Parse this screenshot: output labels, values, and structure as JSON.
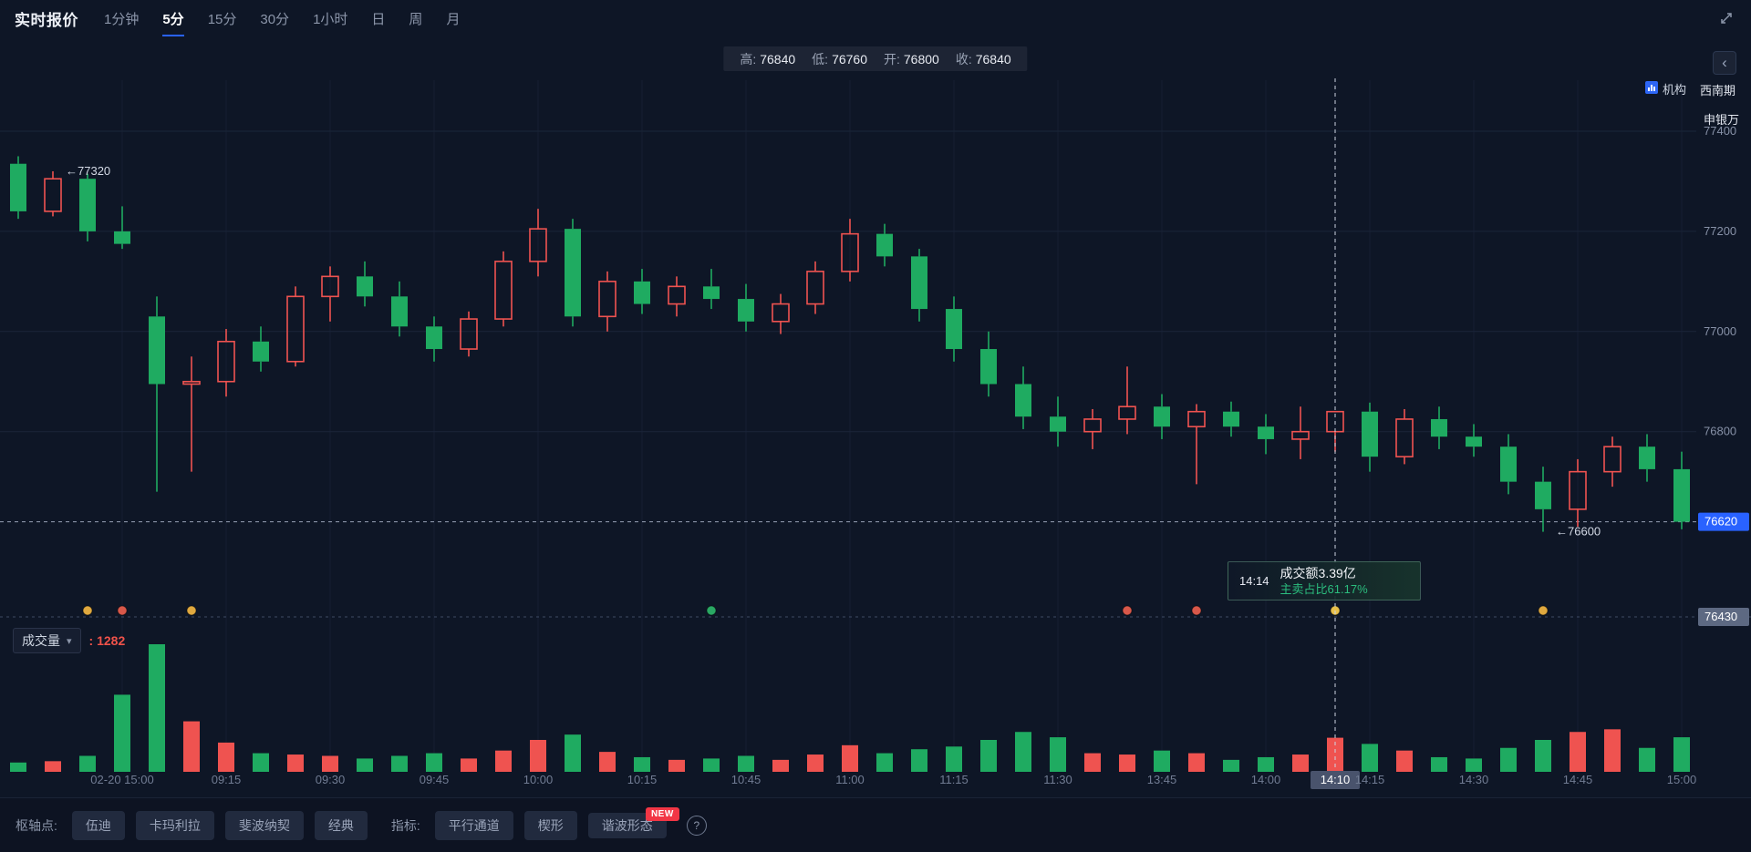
{
  "header": {
    "title": "实时报价",
    "tabs": [
      "1分钟",
      "5分",
      "15分",
      "30分",
      "1小时",
      "日",
      "周",
      "月"
    ],
    "active_tab": "5分"
  },
  "ohlc_bar": {
    "h_label": "高:",
    "h": "76840",
    "l_label": "低:",
    "l": "76760",
    "o_label": "开:",
    "o": "76800",
    "c_label": "收:",
    "c": "76840"
  },
  "right_panel": {
    "institution": "机构",
    "broker1": "西南期",
    "broker2": "申银万"
  },
  "volume_pane": {
    "label": "成交量",
    "value": ": 1282"
  },
  "toolbar": {
    "pivot_label": "枢轴点:",
    "pivot_buttons": [
      "伍迪",
      "卡玛利拉",
      "斐波纳契",
      "经典"
    ],
    "indicator_label": "指标:",
    "indicator_buttons": [
      "平行通道",
      "楔形",
      "谐波形态"
    ],
    "new_badge": "NEW"
  },
  "icons": {
    "chevron_down": "▾",
    "collapse": "‹",
    "help": "?"
  },
  "chart_data": {
    "type": "candlestick+volume",
    "timeframe": "5分",
    "price_axis": {
      "top": 77400,
      "floor": 76430,
      "ticks": [
        77400,
        77200,
        77000,
        76800
      ]
    },
    "current_price": 76620,
    "high_annotation": {
      "i": 1,
      "price": 77320,
      "label": "77320"
    },
    "low_annotation": {
      "i": 44,
      "price": 76600,
      "label": "76600"
    },
    "crosshair": {
      "i": 38,
      "time": "14:14",
      "axis_label": "14:10"
    },
    "tooltip": {
      "turnover": "成交额3.39亿",
      "sell_ratio": "主卖占比61.17%"
    },
    "x_ticks": [
      {
        "i": 3,
        "label": "02-20 15:00"
      },
      {
        "i": 6,
        "label": "09:15"
      },
      {
        "i": 9,
        "label": "09:30"
      },
      {
        "i": 12,
        "label": "09:45"
      },
      {
        "i": 15,
        "label": "10:00"
      },
      {
        "i": 18,
        "label": "10:15"
      },
      {
        "i": 21,
        "label": "10:45"
      },
      {
        "i": 24,
        "label": "11:00"
      },
      {
        "i": 27,
        "label": "11:15"
      },
      {
        "i": 30,
        "label": "11:30"
      },
      {
        "i": 33,
        "label": "13:45"
      },
      {
        "i": 36,
        "label": "14:00"
      },
      {
        "i": 38,
        "label": "14:10",
        "hl": true
      },
      {
        "i": 39,
        "label": "14:15"
      },
      {
        "i": 42,
        "label": "14:30"
      },
      {
        "i": 45,
        "label": "14:45"
      },
      {
        "i": 48,
        "label": "15:00"
      }
    ],
    "markers": [
      {
        "i": 2,
        "color": "#e0a93f"
      },
      {
        "i": 3,
        "color": "#d8584a"
      },
      {
        "i": 5,
        "color": "#e0a93f"
      },
      {
        "i": 20,
        "color": "#2aa864"
      },
      {
        "i": 32,
        "color": "#d8584a"
      },
      {
        "i": 34,
        "color": "#d8584a"
      },
      {
        "i": 38,
        "color": "#e8c04a"
      },
      {
        "i": 44,
        "color": "#e0a93f"
      }
    ],
    "colors": {
      "up": "#ef5350",
      "down": "#1fab61",
      "accent": "#2962ff"
    },
    "candles": {
      "columns": [
        "time",
        "open",
        "high",
        "low",
        "close",
        "volume"
      ],
      "rows": [
        [
          "02-20 14:45",
          77335,
          77350,
          77225,
          77240,
          350
        ],
        [
          "02-20 14:50",
          77240,
          77320,
          77230,
          77305,
          400
        ],
        [
          "02-20 14:55",
          77305,
          77315,
          77180,
          77200,
          600
        ],
        [
          "02-20 15:00",
          77200,
          77250,
          77165,
          77175,
          2900
        ],
        [
          "09:05",
          77030,
          77070,
          76680,
          76895,
          4800
        ],
        [
          "09:10",
          76895,
          76950,
          76720,
          76900,
          1900
        ],
        [
          "09:15",
          76900,
          77005,
          76870,
          76980,
          1100
        ],
        [
          "09:20",
          76980,
          77010,
          76920,
          76940,
          700
        ],
        [
          "09:25",
          76940,
          77090,
          76930,
          77070,
          650
        ],
        [
          "09:30",
          77070,
          77130,
          77020,
          77110,
          600
        ],
        [
          "09:35",
          77110,
          77140,
          77050,
          77070,
          500
        ],
        [
          "09:40",
          77070,
          77100,
          76990,
          77010,
          600
        ],
        [
          "09:45",
          77010,
          77030,
          76940,
          76965,
          700
        ],
        [
          "09:50",
          76965,
          77040,
          76950,
          77025,
          500
        ],
        [
          "09:55",
          77025,
          77160,
          77010,
          77140,
          800
        ],
        [
          "10:00",
          77140,
          77245,
          77110,
          77205,
          1200
        ],
        [
          "10:05",
          77205,
          77225,
          77010,
          77030,
          1400
        ],
        [
          "10:10",
          77030,
          77120,
          77000,
          77100,
          750
        ],
        [
          "10:15",
          77100,
          77125,
          77035,
          77055,
          550
        ],
        [
          "10:35",
          77055,
          77110,
          77030,
          77090,
          450
        ],
        [
          "10:40",
          77090,
          77125,
          77045,
          77065,
          500
        ],
        [
          "10:45",
          77065,
          77095,
          77000,
          77020,
          600
        ],
        [
          "10:50",
          77020,
          77075,
          76995,
          77055,
          450
        ],
        [
          "10:55",
          77055,
          77140,
          77035,
          77120,
          650
        ],
        [
          "11:00",
          77120,
          77225,
          77100,
          77195,
          1000
        ],
        [
          "11:05",
          77195,
          77215,
          77130,
          77150,
          700
        ],
        [
          "11:10",
          77150,
          77165,
          77020,
          77045,
          850
        ],
        [
          "11:15",
          77045,
          77070,
          76940,
          76965,
          950
        ],
        [
          "11:20",
          76965,
          77000,
          76870,
          76895,
          1200
        ],
        [
          "11:25",
          76895,
          76930,
          76805,
          76830,
          1500
        ],
        [
          "11:30",
          76830,
          76870,
          76770,
          76800,
          1300
        ],
        [
          "13:35",
          76800,
          76845,
          76765,
          76825,
          700
        ],
        [
          "13:40",
          76825,
          76930,
          76795,
          76850,
          650
        ],
        [
          "13:45",
          76850,
          76875,
          76785,
          76810,
          800
        ],
        [
          "13:50",
          76810,
          76855,
          76695,
          76840,
          700
        ],
        [
          "13:55",
          76840,
          76860,
          76790,
          76810,
          450
        ],
        [
          "14:00",
          76810,
          76835,
          76755,
          76785,
          550
        ],
        [
          "14:05",
          76785,
          76850,
          76745,
          76800,
          650
        ],
        [
          "14:10",
          76800,
          76840,
          76760,
          76840,
          1282
        ],
        [
          "14:15",
          76840,
          76858,
          76720,
          76750,
          1050
        ],
        [
          "14:20",
          76750,
          76845,
          76735,
          76825,
          800
        ],
        [
          "14:25",
          76825,
          76850,
          76765,
          76790,
          550
        ],
        [
          "14:30",
          76790,
          76815,
          76750,
          76770,
          500
        ],
        [
          "14:35",
          76770,
          76795,
          76675,
          76700,
          900
        ],
        [
          "14:40",
          76700,
          76730,
          76600,
          76645,
          1200
        ],
        [
          "14:45",
          76645,
          76745,
          76610,
          76720,
          1500
        ],
        [
          "14:50",
          76720,
          76790,
          76690,
          76770,
          1600
        ],
        [
          "14:55",
          76770,
          76795,
          76700,
          76725,
          900
        ],
        [
          "15:00",
          76725,
          76760,
          76605,
          76620,
          1300
        ]
      ]
    }
  }
}
